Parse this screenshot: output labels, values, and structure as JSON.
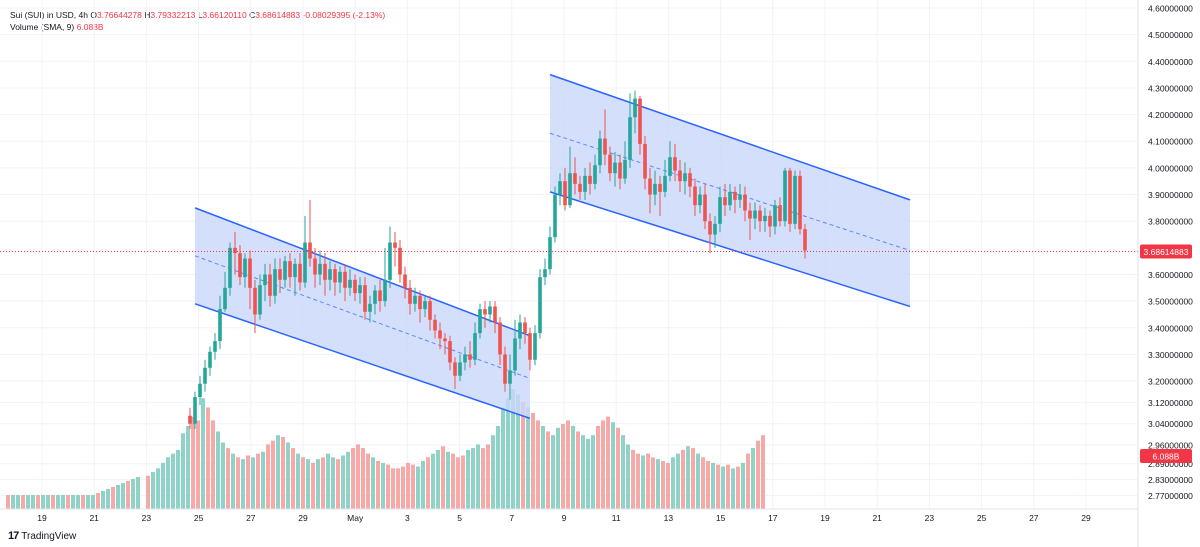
{
  "header": {
    "symbol": "Sui (SUI) in USD, 4h",
    "open_label": "O",
    "open": "3.76644278",
    "high_label": "H",
    "high": "3.79332213",
    "low_label": "L",
    "low": "3.66120110",
    "close_label": "C",
    "close": "3.68614883",
    "change": "-0.08029395 (-2.13%)",
    "volume_label": "Volume (SMA, 9)",
    "volume_value": "6.088B"
  },
  "brand": {
    "name": "TradingView",
    "logo": "17"
  },
  "colors": {
    "up": "#26a69a",
    "down": "#ef5350",
    "vol_up": "#8fd3c8",
    "vol_down": "#f7a9a7",
    "channel_fill": "#c9d7fb",
    "channel_line": "#2962ff",
    "price_line": "#f23645",
    "grid": "#f0f3fa"
  },
  "chart_data": {
    "type": "candlestick",
    "title": "Sui (SUI) in USD, 4h",
    "y_axis": {
      "ticks": [
        "4.60000000",
        "4.50000000",
        "4.40000000",
        "4.30000000",
        "4.20000000",
        "4.10000000",
        "4.00000000",
        "3.90000000",
        "3.80000000",
        "3.60000000",
        "3.50000000",
        "3.40000000",
        "3.30000000",
        "3.20000000",
        "3.12000000",
        "3.04000000",
        "2.96000000",
        "2.89000000",
        "2.83000000",
        "2.77000000"
      ],
      "range": [
        2.72,
        4.63
      ]
    },
    "x_axis": {
      "ticks": [
        "19",
        "21",
        "23",
        "25",
        "27",
        "29",
        "May",
        "3",
        "5",
        "7",
        "9",
        "11",
        "13",
        "15",
        "17",
        "19",
        "21",
        "23",
        "25",
        "27",
        "29"
      ]
    },
    "last_price": "3.68614883",
    "volume_badge": "6.088B",
    "candles": [
      {
        "o": 3.07,
        "c": 3.04,
        "h": 3.1,
        "l": 3.02
      },
      {
        "o": 3.04,
        "c": 3.14,
        "h": 3.16,
        "l": 3.02
      },
      {
        "o": 3.14,
        "c": 3.19,
        "h": 3.22,
        "l": 3.11
      },
      {
        "o": 3.19,
        "c": 3.25,
        "h": 3.28,
        "l": 3.16
      },
      {
        "o": 3.25,
        "c": 3.31,
        "h": 3.33,
        "l": 3.22
      },
      {
        "o": 3.31,
        "c": 3.35,
        "h": 3.38,
        "l": 3.28
      },
      {
        "o": 3.35,
        "c": 3.47,
        "h": 3.52,
        "l": 3.32
      },
      {
        "o": 3.47,
        "c": 3.55,
        "h": 3.61,
        "l": 3.46
      },
      {
        "o": 3.55,
        "c": 3.7,
        "h": 3.72,
        "l": 3.52
      },
      {
        "o": 3.7,
        "c": 3.68,
        "h": 3.76,
        "l": 3.6
      },
      {
        "o": 3.68,
        "c": 3.59,
        "h": 3.71,
        "l": 3.56
      },
      {
        "o": 3.59,
        "c": 3.66,
        "h": 3.68,
        "l": 3.55
      },
      {
        "o": 3.66,
        "c": 3.55,
        "h": 3.69,
        "l": 3.47
      },
      {
        "o": 3.55,
        "c": 3.45,
        "h": 3.58,
        "l": 3.38
      },
      {
        "o": 3.45,
        "c": 3.56,
        "h": 3.6,
        "l": 3.43
      },
      {
        "o": 3.56,
        "c": 3.6,
        "h": 3.64,
        "l": 3.5
      },
      {
        "o": 3.6,
        "c": 3.52,
        "h": 3.64,
        "l": 3.48
      },
      {
        "o": 3.52,
        "c": 3.62,
        "h": 3.66,
        "l": 3.49
      },
      {
        "o": 3.62,
        "c": 3.58,
        "h": 3.66,
        "l": 3.53
      },
      {
        "o": 3.58,
        "c": 3.65,
        "h": 3.67,
        "l": 3.55
      },
      {
        "o": 3.65,
        "c": 3.59,
        "h": 3.68,
        "l": 3.55
      },
      {
        "o": 3.59,
        "c": 3.64,
        "h": 3.66,
        "l": 3.52
      },
      {
        "o": 3.64,
        "c": 3.57,
        "h": 3.68,
        "l": 3.54
      },
      {
        "o": 3.57,
        "c": 3.72,
        "h": 3.82,
        "l": 3.55
      },
      {
        "o": 3.72,
        "c": 3.66,
        "h": 3.88,
        "l": 3.63
      },
      {
        "o": 3.66,
        "c": 3.6,
        "h": 3.7,
        "l": 3.55
      },
      {
        "o": 3.6,
        "c": 3.64,
        "h": 3.69,
        "l": 3.56
      },
      {
        "o": 3.64,
        "c": 3.58,
        "h": 3.68,
        "l": 3.52
      },
      {
        "o": 3.58,
        "c": 3.62,
        "h": 3.65,
        "l": 3.54
      },
      {
        "o": 3.62,
        "c": 3.57,
        "h": 3.64,
        "l": 3.52
      },
      {
        "o": 3.57,
        "c": 3.61,
        "h": 3.63,
        "l": 3.53
      },
      {
        "o": 3.61,
        "c": 3.55,
        "h": 3.64,
        "l": 3.5
      },
      {
        "o": 3.55,
        "c": 3.58,
        "h": 3.62,
        "l": 3.52
      },
      {
        "o": 3.58,
        "c": 3.53,
        "h": 3.6,
        "l": 3.5
      },
      {
        "o": 3.53,
        "c": 3.56,
        "h": 3.59,
        "l": 3.49
      },
      {
        "o": 3.56,
        "c": 3.46,
        "h": 3.59,
        "l": 3.43
      },
      {
        "o": 3.46,
        "c": 3.49,
        "h": 3.52,
        "l": 3.42
      },
      {
        "o": 3.49,
        "c": 3.54,
        "h": 3.56,
        "l": 3.45
      },
      {
        "o": 3.54,
        "c": 3.5,
        "h": 3.58,
        "l": 3.46
      },
      {
        "o": 3.5,
        "c": 3.58,
        "h": 3.7,
        "l": 3.48
      },
      {
        "o": 3.58,
        "c": 3.72,
        "h": 3.78,
        "l": 3.55
      },
      {
        "o": 3.72,
        "c": 3.7,
        "h": 3.76,
        "l": 3.63
      },
      {
        "o": 3.7,
        "c": 3.6,
        "h": 3.73,
        "l": 3.57
      },
      {
        "o": 3.6,
        "c": 3.55,
        "h": 3.63,
        "l": 3.51
      },
      {
        "o": 3.55,
        "c": 3.49,
        "h": 3.58,
        "l": 3.45
      },
      {
        "o": 3.49,
        "c": 3.52,
        "h": 3.55,
        "l": 3.46
      },
      {
        "o": 3.52,
        "c": 3.47,
        "h": 3.54,
        "l": 3.42
      },
      {
        "o": 3.47,
        "c": 3.5,
        "h": 3.52,
        "l": 3.44
      },
      {
        "o": 3.5,
        "c": 3.43,
        "h": 3.52,
        "l": 3.39
      },
      {
        "o": 3.43,
        "c": 3.39,
        "h": 3.45,
        "l": 3.36
      },
      {
        "o": 3.39,
        "c": 3.36,
        "h": 3.42,
        "l": 3.32
      },
      {
        "o": 3.36,
        "c": 3.35,
        "h": 3.38,
        "l": 3.3
      },
      {
        "o": 3.35,
        "c": 3.27,
        "h": 3.37,
        "l": 3.24
      },
      {
        "o": 3.27,
        "c": 3.22,
        "h": 3.29,
        "l": 3.17
      },
      {
        "o": 3.22,
        "c": 3.27,
        "h": 3.3,
        "l": 3.2
      },
      {
        "o": 3.27,
        "c": 3.3,
        "h": 3.33,
        "l": 3.24
      },
      {
        "o": 3.3,
        "c": 3.28,
        "h": 3.35,
        "l": 3.25
      },
      {
        "o": 3.28,
        "c": 3.38,
        "h": 3.42,
        "l": 3.26
      },
      {
        "o": 3.38,
        "c": 3.47,
        "h": 3.49,
        "l": 3.36
      },
      {
        "o": 3.47,
        "c": 3.45,
        "h": 3.5,
        "l": 3.4
      },
      {
        "o": 3.45,
        "c": 3.48,
        "h": 3.5,
        "l": 3.42
      },
      {
        "o": 3.48,
        "c": 3.42,
        "h": 3.5,
        "l": 3.38
      },
      {
        "o": 3.42,
        "c": 3.3,
        "h": 3.44,
        "l": 3.26
      },
      {
        "o": 3.3,
        "c": 3.19,
        "h": 3.33,
        "l": 3.16
      },
      {
        "o": 3.19,
        "c": 3.24,
        "h": 3.3,
        "l": 3.13
      },
      {
        "o": 3.24,
        "c": 3.36,
        "h": 3.43,
        "l": 3.22
      },
      {
        "o": 3.36,
        "c": 3.42,
        "h": 3.45,
        "l": 3.32
      },
      {
        "o": 3.42,
        "c": 3.38,
        "h": 3.44,
        "l": 3.34
      },
      {
        "o": 3.38,
        "c": 3.28,
        "h": 3.4,
        "l": 3.24
      },
      {
        "o": 3.28,
        "c": 3.38,
        "h": 3.41,
        "l": 3.26
      },
      {
        "o": 3.38,
        "c": 3.59,
        "h": 3.62,
        "l": 3.36
      },
      {
        "o": 3.59,
        "c": 3.62,
        "h": 3.66,
        "l": 3.56
      },
      {
        "o": 3.62,
        "c": 3.74,
        "h": 3.78,
        "l": 3.6
      },
      {
        "o": 3.74,
        "c": 3.9,
        "h": 3.93,
        "l": 3.72
      },
      {
        "o": 3.9,
        "c": 3.95,
        "h": 3.98,
        "l": 3.86
      },
      {
        "o": 3.95,
        "c": 3.86,
        "h": 4.0,
        "l": 3.84
      },
      {
        "o": 3.86,
        "c": 3.98,
        "h": 4.08,
        "l": 3.85
      },
      {
        "o": 3.98,
        "c": 3.94,
        "h": 4.04,
        "l": 3.9
      },
      {
        "o": 3.94,
        "c": 3.91,
        "h": 3.97,
        "l": 3.88
      },
      {
        "o": 3.91,
        "c": 3.97,
        "h": 4.0,
        "l": 3.88
      },
      {
        "o": 3.97,
        "c": 3.94,
        "h": 4.02,
        "l": 3.9
      },
      {
        "o": 3.94,
        "c": 4.01,
        "h": 4.05,
        "l": 3.92
      },
      {
        "o": 4.01,
        "c": 4.11,
        "h": 4.14,
        "l": 3.98
      },
      {
        "o": 4.11,
        "c": 4.05,
        "h": 4.22,
        "l": 4.01
      },
      {
        "o": 4.05,
        "c": 3.98,
        "h": 4.08,
        "l": 3.95
      },
      {
        "o": 3.98,
        "c": 4.02,
        "h": 4.06,
        "l": 3.93
      },
      {
        "o": 4.02,
        "c": 3.96,
        "h": 4.05,
        "l": 3.92
      },
      {
        "o": 3.96,
        "c": 4.03,
        "h": 4.1,
        "l": 3.94
      },
      {
        "o": 4.03,
        "c": 4.19,
        "h": 4.28,
        "l": 4.0
      },
      {
        "o": 4.19,
        "c": 4.26,
        "h": 4.29,
        "l": 4.13
      },
      {
        "o": 4.26,
        "c": 4.09,
        "h": 4.27,
        "l": 4.05
      },
      {
        "o": 4.09,
        "c": 3.96,
        "h": 4.12,
        "l": 3.92
      },
      {
        "o": 3.96,
        "c": 3.9,
        "h": 4.0,
        "l": 3.83
      },
      {
        "o": 3.9,
        "c": 3.94,
        "h": 3.99,
        "l": 3.86
      },
      {
        "o": 3.94,
        "c": 3.91,
        "h": 3.97,
        "l": 3.82
      },
      {
        "o": 3.91,
        "c": 3.97,
        "h": 4.03,
        "l": 3.89
      },
      {
        "o": 3.97,
        "c": 4.04,
        "h": 4.1,
        "l": 3.95
      },
      {
        "o": 4.04,
        "c": 3.99,
        "h": 4.09,
        "l": 3.95
      },
      {
        "o": 3.99,
        "c": 3.95,
        "h": 4.03,
        "l": 3.91
      },
      {
        "o": 3.95,
        "c": 3.98,
        "h": 4.02,
        "l": 3.9
      },
      {
        "o": 3.98,
        "c": 3.93,
        "h": 4.0,
        "l": 3.89
      },
      {
        "o": 3.93,
        "c": 3.86,
        "h": 3.96,
        "l": 3.82
      },
      {
        "o": 3.86,
        "c": 3.9,
        "h": 3.93,
        "l": 3.83
      },
      {
        "o": 3.9,
        "c": 3.8,
        "h": 3.94,
        "l": 3.77
      },
      {
        "o": 3.8,
        "c": 3.75,
        "h": 3.83,
        "l": 3.68
      },
      {
        "o": 3.75,
        "c": 3.79,
        "h": 3.82,
        "l": 3.7
      },
      {
        "o": 3.79,
        "c": 3.89,
        "h": 3.93,
        "l": 3.76
      },
      {
        "o": 3.89,
        "c": 3.86,
        "h": 3.94,
        "l": 3.82
      },
      {
        "o": 3.86,
        "c": 3.91,
        "h": 3.94,
        "l": 3.84
      },
      {
        "o": 3.91,
        "c": 3.88,
        "h": 3.93,
        "l": 3.83
      },
      {
        "o": 3.88,
        "c": 3.9,
        "h": 3.94,
        "l": 3.85
      },
      {
        "o": 3.9,
        "c": 3.84,
        "h": 3.93,
        "l": 3.8
      },
      {
        "o": 3.84,
        "c": 3.81,
        "h": 3.87,
        "l": 3.73
      },
      {
        "o": 3.81,
        "c": 3.84,
        "h": 3.87,
        "l": 3.77
      },
      {
        "o": 3.84,
        "c": 3.8,
        "h": 3.86,
        "l": 3.76
      },
      {
        "o": 3.8,
        "c": 3.82,
        "h": 3.85,
        "l": 3.76
      },
      {
        "o": 3.82,
        "c": 3.78,
        "h": 3.84,
        "l": 3.74
      },
      {
        "o": 3.78,
        "c": 3.86,
        "h": 3.88,
        "l": 3.75
      },
      {
        "o": 3.86,
        "c": 3.8,
        "h": 3.89,
        "l": 3.78
      },
      {
        "o": 3.8,
        "c": 3.99,
        "h": 4.0,
        "l": 3.78
      },
      {
        "o": 3.99,
        "c": 3.79,
        "h": 4.0,
        "l": 3.76
      },
      {
        "o": 3.79,
        "c": 3.97,
        "h": 3.99,
        "l": 3.77
      },
      {
        "o": 3.97,
        "c": 3.77,
        "h": 3.99,
        "l": 3.75
      },
      {
        "o": 3.77,
        "c": 3.69,
        "h": 3.79,
        "l": 3.66
      }
    ],
    "volume": [
      0.18,
      0.2,
      0.22,
      0.25,
      0.28,
      0.3,
      0.32,
      0.41,
      0.45,
      0.5,
      0.48,
      0.6,
      0.55,
      0.48,
      0.42,
      0.36,
      0.33,
      0.3,
      0.28,
      0.27,
      0.29,
      0.28,
      0.3,
      0.31,
      0.35,
      0.37,
      0.4,
      0.39,
      0.36,
      0.33,
      0.3,
      0.28,
      0.27,
      0.25,
      0.27,
      0.28,
      0.3,
      0.28,
      0.27,
      0.29,
      0.31,
      0.33,
      0.35,
      0.33,
      0.3,
      0.28,
      0.26,
      0.25,
      0.24,
      0.22,
      0.22,
      0.23,
      0.25,
      0.24,
      0.23,
      0.26,
      0.28,
      0.3,
      0.32,
      0.34,
      0.31,
      0.3,
      0.28,
      0.29,
      0.32,
      0.33,
      0.35,
      0.33,
      0.35,
      0.4,
      0.45,
      0.55,
      0.6,
      0.65,
      0.62,
      0.58,
      0.55,
      0.52,
      0.48,
      0.45,
      0.42,
      0.4,
      0.44,
      0.46,
      0.48,
      0.45,
      0.42,
      0.4,
      0.38,
      0.4,
      0.45,
      0.48,
      0.5,
      0.47,
      0.44,
      0.4,
      0.35,
      0.32,
      0.3,
      0.29,
      0.3,
      0.28,
      0.27,
      0.26,
      0.25,
      0.28,
      0.3,
      0.32,
      0.34,
      0.33,
      0.3,
      0.28,
      0.26,
      0.25,
      0.24,
      0.23,
      0.24,
      0.22,
      0.23,
      0.25,
      0.3,
      0.33,
      0.37,
      0.4
    ],
    "channels": [
      {
        "start_idx": 1,
        "end_idx": 68,
        "upper": [
          3.85,
          3.37
        ],
        "lower": [
          3.49,
          3.06
        ],
        "mid": [
          3.67,
          3.21
        ]
      },
      {
        "start_idx": 72,
        "end_idx": 138,
        "upper": [
          4.35,
          3.88
        ],
        "lower": [
          3.91,
          3.48
        ],
        "mid": [
          4.13,
          3.69
        ]
      }
    ]
  }
}
